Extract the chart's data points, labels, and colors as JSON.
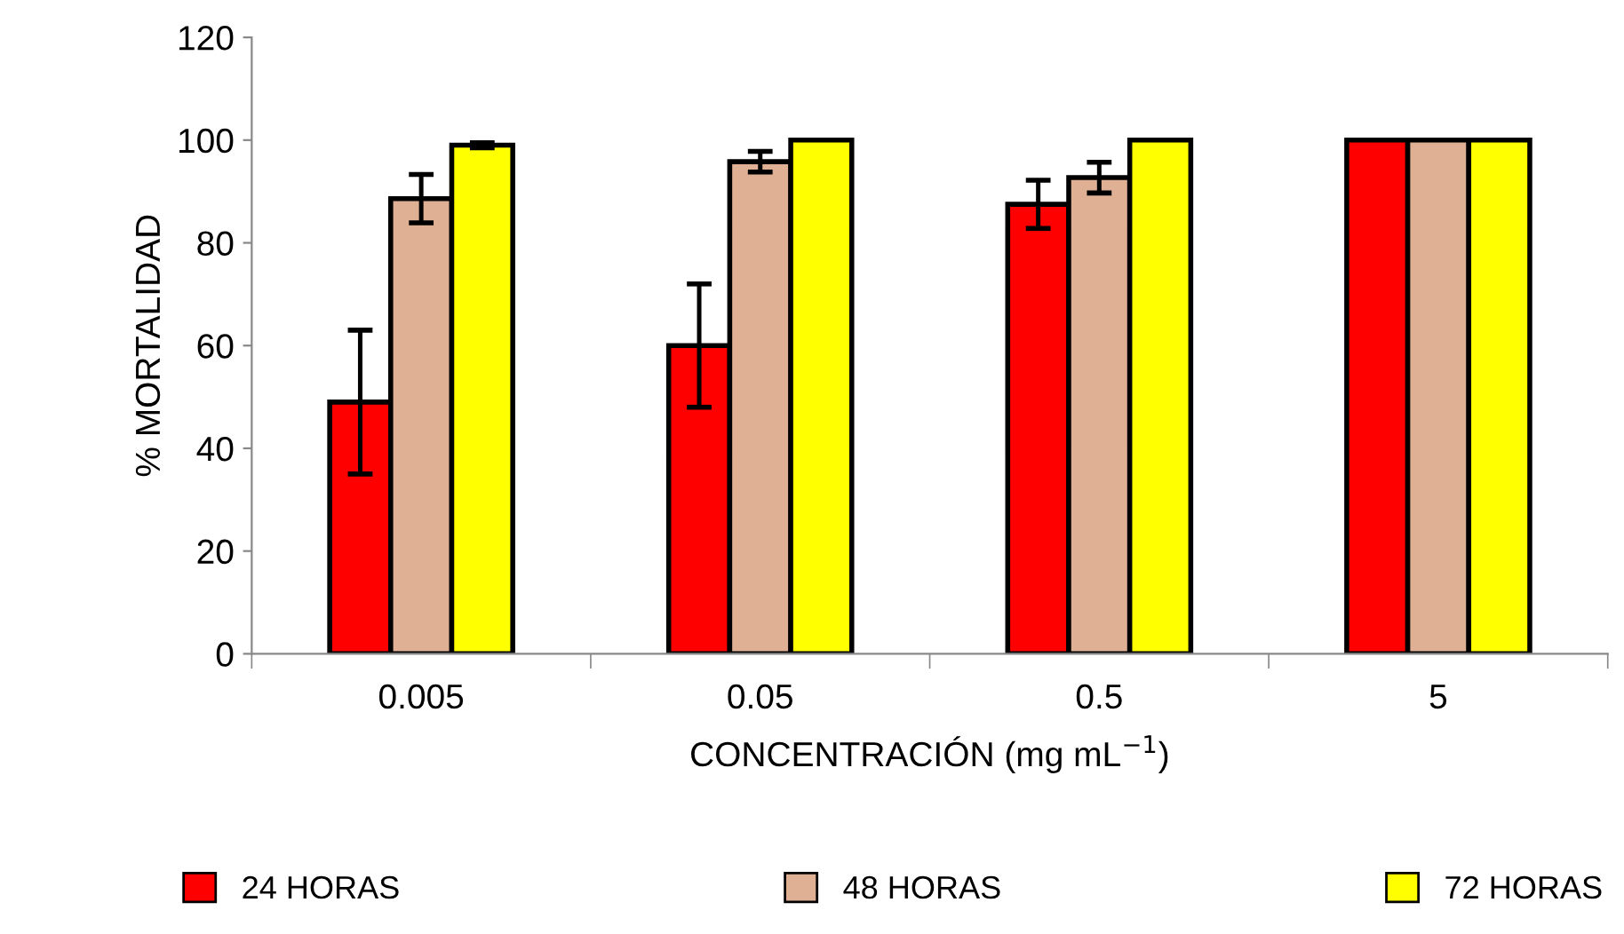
{
  "chart_data": {
    "type": "bar",
    "categories": [
      "0.005",
      "0.05",
      "0.5",
      "5"
    ],
    "xlabel": "CONCENTRACIÓN (mg mL$^{−1}$)",
    "ylabel": "% MORTALIDAD",
    "ylim": [
      0,
      120
    ],
    "yticks": [
      0,
      20,
      40,
      60,
      80,
      100,
      120
    ],
    "grid": false,
    "legend": "bottom",
    "series": [
      {
        "name": "24 HORAS",
        "color": "#ff0000",
        "values": [
          49,
          60,
          87.5,
          100
        ],
        "errors": [
          14,
          12,
          4.7,
          null
        ]
      },
      {
        "name": "48 HORAS",
        "color": "#e0b094",
        "values": [
          88.6,
          95.8,
          92.7,
          100
        ],
        "errors": [
          4.7,
          2,
          3,
          null
        ]
      },
      {
        "name": "72 HORAS",
        "color": "#ffff00",
        "values": [
          99,
          100,
          100,
          100
        ],
        "errors": [
          0.5,
          null,
          null,
          null
        ]
      }
    ]
  }
}
